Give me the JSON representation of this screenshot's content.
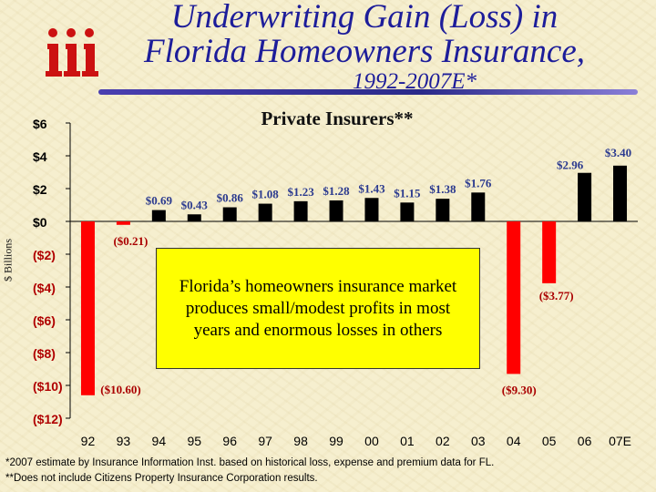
{
  "title": {
    "line1": "Underwriting Gain (Loss) in",
    "line2": "Florida Homeowners Insurance,",
    "line3": "1992-2007E*"
  },
  "logo_icon": "iii-logo-icon",
  "colors": {
    "title": "#1d1d9a",
    "loss_bar": "#ff0000",
    "gain_bar": "#000000",
    "callout_bg": "#ffff00",
    "data_label": "#2b3a8f",
    "loss_label": "#aa0000"
  },
  "chart_data": {
    "type": "bar",
    "title": "Private Insurers**",
    "ylabel": "$ Billions",
    "ylim": [
      -12,
      6
    ],
    "yticks": [
      6,
      4,
      2,
      0,
      -2,
      -4,
      -6,
      -8,
      -10,
      -12
    ],
    "ytick_labels": [
      "$6",
      "$4",
      "$2",
      "$0",
      "($2)",
      "($4)",
      "($6)",
      "($8)",
      "($10)",
      "($12)"
    ],
    "categories": [
      "92",
      "93",
      "94",
      "95",
      "96",
      "97",
      "98",
      "99",
      "00",
      "01",
      "02",
      "03",
      "04",
      "05",
      "06",
      "07E"
    ],
    "values": [
      -10.6,
      -0.21,
      0.69,
      0.43,
      0.86,
      1.08,
      1.23,
      1.28,
      1.43,
      1.15,
      1.38,
      1.76,
      -9.3,
      -3.77,
      2.96,
      3.4
    ],
    "data_labels": [
      "($10.60)",
      "($0.21)",
      "$0.69",
      "$0.43",
      "$0.86",
      "$1.08",
      "$1.23",
      "$1.28",
      "$1.43",
      "$1.15",
      "$1.38",
      "$1.76",
      "($9.30)",
      "($3.77)",
      "$2.96",
      "$3.40"
    ],
    "highlight": [
      "92",
      "93",
      "04",
      "05"
    ],
    "annotation": "Florida’s homeowners insurance market produces small/modest profits in most years and enormous losses in others"
  },
  "footnotes": [
    "*2007 estimate by Insurance Information Inst. based on historical loss, expense and premium data for FL.",
    "**Does not include Citizens Property Insurance Corporation results."
  ]
}
